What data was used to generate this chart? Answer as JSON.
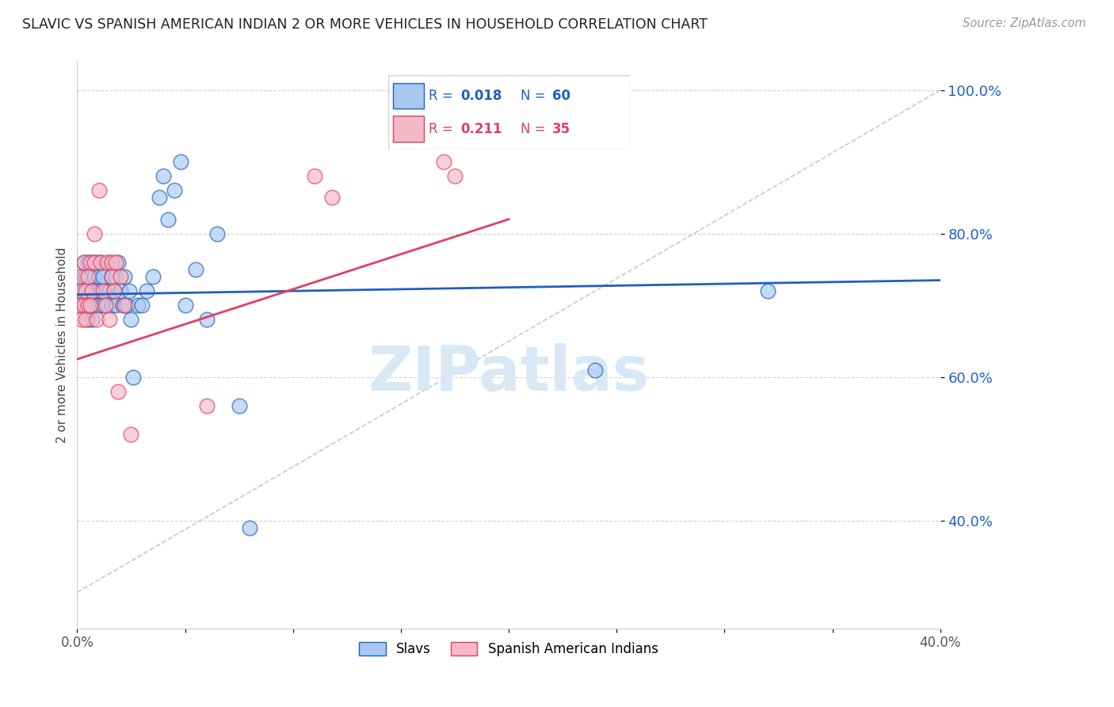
{
  "title": "SLAVIC VS SPANISH AMERICAN INDIAN 2 OR MORE VEHICLES IN HOUSEHOLD CORRELATION CHART",
  "source": "Source: ZipAtlas.com",
  "ylabel": "2 or more Vehicles in Household",
  "x_min": 0.0,
  "x_max": 0.4,
  "y_min": 0.25,
  "y_max": 1.04,
  "x_ticks": [
    0.0,
    0.05,
    0.1,
    0.15,
    0.2,
    0.25,
    0.3,
    0.35,
    0.4
  ],
  "x_tick_labels": [
    "0.0%",
    "",
    "",
    "",
    "",
    "",
    "",
    "",
    "40.0%"
  ],
  "y_ticks": [
    0.4,
    0.6,
    0.8,
    1.0
  ],
  "y_tick_labels": [
    "40.0%",
    "60.0%",
    "80.0%",
    "100.0%"
  ],
  "slavs_R": 0.018,
  "slavs_N": 60,
  "spanish_R": 0.211,
  "spanish_N": 35,
  "blue_color": "#A8C8F0",
  "pink_color": "#F5B8C8",
  "trend_blue": "#2060C0",
  "trend_pink": "#E04060",
  "slavs_x": [
    0.001,
    0.002,
    0.002,
    0.003,
    0.003,
    0.003,
    0.004,
    0.004,
    0.005,
    0.005,
    0.005,
    0.006,
    0.006,
    0.007,
    0.007,
    0.007,
    0.008,
    0.008,
    0.009,
    0.009,
    0.01,
    0.01,
    0.011,
    0.011,
    0.012,
    0.012,
    0.013,
    0.014,
    0.015,
    0.015,
    0.016,
    0.016,
    0.017,
    0.018,
    0.018,
    0.019,
    0.02,
    0.021,
    0.022,
    0.023,
    0.024,
    0.025,
    0.026,
    0.028,
    0.03,
    0.032,
    0.035,
    0.038,
    0.04,
    0.042,
    0.045,
    0.048,
    0.05,
    0.055,
    0.06,
    0.065,
    0.075,
    0.08,
    0.24,
    0.32
  ],
  "slavs_y": [
    0.72,
    0.7,
    0.74,
    0.72,
    0.74,
    0.76,
    0.7,
    0.74,
    0.72,
    0.68,
    0.76,
    0.7,
    0.74,
    0.72,
    0.68,
    0.76,
    0.7,
    0.74,
    0.72,
    0.76,
    0.7,
    0.74,
    0.72,
    0.76,
    0.7,
    0.74,
    0.72,
    0.7,
    0.72,
    0.76,
    0.7,
    0.74,
    0.72,
    0.7,
    0.74,
    0.76,
    0.72,
    0.7,
    0.74,
    0.7,
    0.72,
    0.68,
    0.6,
    0.7,
    0.7,
    0.72,
    0.74,
    0.85,
    0.88,
    0.82,
    0.86,
    0.9,
    0.7,
    0.75,
    0.68,
    0.8,
    0.56,
    0.39,
    0.61,
    0.72
  ],
  "spanish_x": [
    0.001,
    0.001,
    0.002,
    0.002,
    0.003,
    0.003,
    0.004,
    0.004,
    0.005,
    0.005,
    0.006,
    0.006,
    0.007,
    0.008,
    0.008,
    0.009,
    0.01,
    0.011,
    0.012,
    0.013,
    0.014,
    0.015,
    0.016,
    0.016,
    0.017,
    0.018,
    0.019,
    0.02,
    0.022,
    0.025,
    0.06,
    0.11,
    0.118,
    0.17,
    0.175
  ],
  "spanish_y": [
    0.7,
    0.74,
    0.68,
    0.72,
    0.7,
    0.76,
    0.68,
    0.72,
    0.7,
    0.74,
    0.7,
    0.76,
    0.72,
    0.76,
    0.8,
    0.68,
    0.86,
    0.76,
    0.72,
    0.7,
    0.76,
    0.68,
    0.76,
    0.74,
    0.72,
    0.76,
    0.58,
    0.74,
    0.7,
    0.52,
    0.56,
    0.88,
    0.85,
    0.9,
    0.88
  ],
  "diag_line_color": "#BBBBBB",
  "grid_color": "#CCCCCC",
  "watermark_color": "#D8E8F5"
}
